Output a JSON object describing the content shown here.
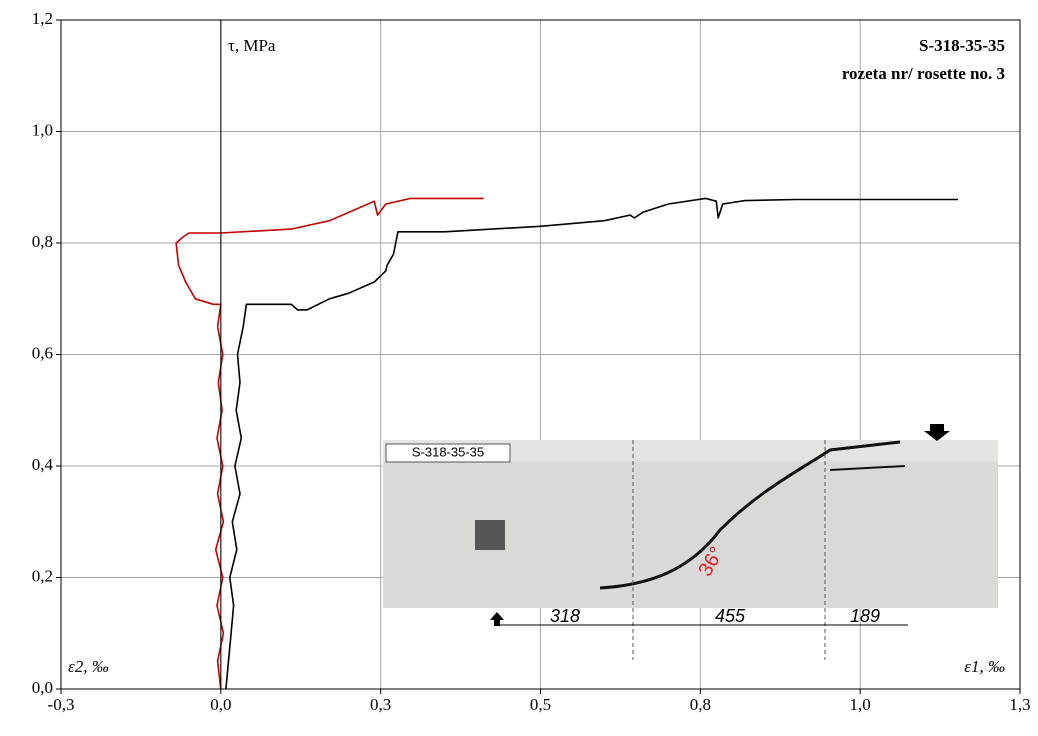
{
  "chart_data": {
    "type": "line",
    "annotations": {
      "y_label": "τ, MPa",
      "title": "S-318-35-35",
      "subtitle": "rozeta nr/ rosette no. 3",
      "x_left_label": "ε2, ‰",
      "x_right_label": "ε1, ‰"
    },
    "xlim": [
      -0.25,
      1.25
    ],
    "xticks": [
      {
        "value": -0.25,
        "label": "-0,3"
      },
      {
        "value": 0,
        "label": "0,0"
      },
      {
        "value": 0.25,
        "label": "0,3"
      },
      {
        "value": 0.5,
        "label": "0,5"
      },
      {
        "value": 0.75,
        "label": "0,8"
      },
      {
        "value": 1.0,
        "label": "1,0"
      },
      {
        "value": 1.25,
        "label": "1,3"
      }
    ],
    "ylim": [
      0,
      1.2
    ],
    "yticks": [
      {
        "value": 0,
        "label": "0,0"
      },
      {
        "value": 0.2,
        "label": "0,2"
      },
      {
        "value": 0.4,
        "label": "0,4"
      },
      {
        "value": 0.6,
        "label": "0,6"
      },
      {
        "value": 0.8,
        "label": "0,8"
      },
      {
        "value": 1.0,
        "label": "1,0"
      },
      {
        "value": 1.2,
        "label": "1,2"
      }
    ],
    "grid": true,
    "series": [
      {
        "color": "#000000",
        "x": [
          0.008,
          0.012,
          0.016,
          0.02,
          0.014,
          0.025,
          0.018,
          0.03,
          0.022,
          0.032,
          0.024,
          0.03,
          0.026,
          0.035,
          0.04,
          0.11,
          0.12,
          0.135,
          0.17,
          0.2,
          0.24,
          0.258,
          0.26,
          0.27,
          0.277,
          0.35,
          0.5,
          0.6,
          0.64,
          0.647,
          0.66,
          0.7,
          0.758,
          0.775,
          0.778,
          0.785,
          0.82,
          0.9,
          1.0,
          1.153
        ],
        "values": [
          0.0,
          0.05,
          0.1,
          0.15,
          0.2,
          0.25,
          0.3,
          0.35,
          0.4,
          0.45,
          0.5,
          0.55,
          0.6,
          0.65,
          0.69,
          0.69,
          0.68,
          0.68,
          0.7,
          0.71,
          0.73,
          0.75,
          0.76,
          0.78,
          0.82,
          0.82,
          0.83,
          0.84,
          0.85,
          0.845,
          0.855,
          0.87,
          0.88,
          0.875,
          0.845,
          0.87,
          0.876,
          0.878,
          0.878,
          0.878
        ]
      },
      {
        "color": "#c00000",
        "x": [
          0.0,
          -0.005,
          0.004,
          -0.006,
          0.003,
          -0.008,
          0.004,
          -0.005,
          0.003,
          -0.006,
          0.002,
          -0.004,
          0.003,
          -0.005,
          0.0,
          -0.012,
          -0.04,
          -0.055,
          -0.066,
          -0.07,
          -0.06,
          -0.05,
          0.0,
          0.11,
          0.17,
          0.21,
          0.24,
          0.245,
          0.258,
          0.297,
          0.411
        ],
        "values": [
          0.0,
          0.05,
          0.1,
          0.15,
          0.2,
          0.25,
          0.3,
          0.35,
          0.4,
          0.45,
          0.5,
          0.55,
          0.6,
          0.65,
          0.69,
          0.69,
          0.7,
          0.73,
          0.76,
          0.8,
          0.81,
          0.818,
          0.818,
          0.825,
          0.84,
          0.86,
          0.875,
          0.85,
          0.87,
          0.88,
          0.88
        ]
      }
    ],
    "inset": {
      "label": "S-318-35-35",
      "dimensions": [
        "318",
        "455",
        "189"
      ],
      "angle": "36°"
    }
  }
}
